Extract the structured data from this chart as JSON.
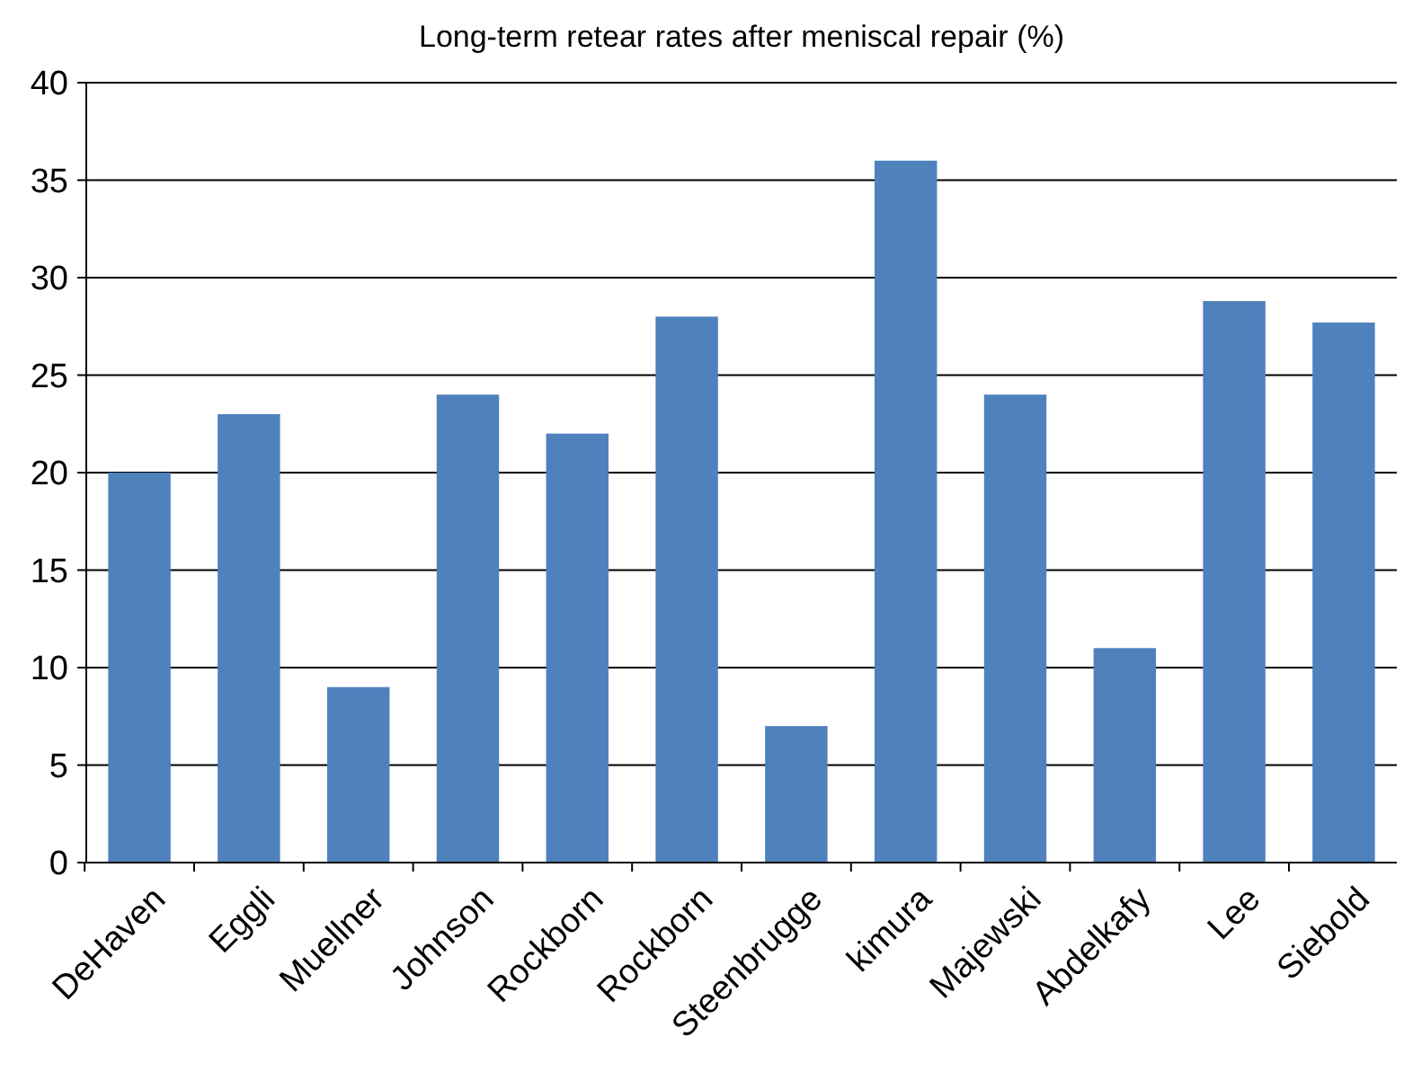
{
  "chart_data": {
    "type": "bar",
    "title": "Long-term retear rates after meniscal repair (%)",
    "categories": [
      "DeHaven",
      "Eggli",
      "Muellner",
      "Johnson",
      "Rockborn",
      "Rockborn",
      "Steenbrugge",
      "kimura",
      "Majewski",
      "Abdelkafy",
      "Lee",
      "Siebold"
    ],
    "values": [
      20,
      23,
      9,
      24,
      22,
      28,
      7,
      36,
      24,
      11,
      28.8,
      27.7
    ],
    "color": "#4f81bd",
    "ylim": [
      0,
      40
    ],
    "yticks": [
      0,
      5,
      10,
      15,
      20,
      25,
      30,
      35,
      40
    ],
    "grid": "y"
  }
}
